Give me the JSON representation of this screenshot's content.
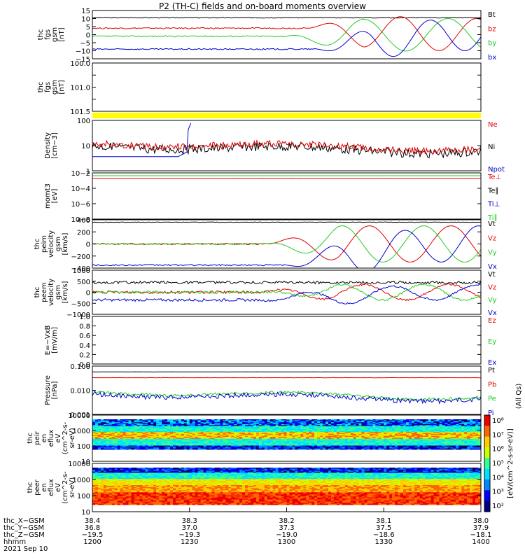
{
  "title": "P2 (TH-C) fields and on-board moments overview",
  "colors": {
    "black": "#000000",
    "red": "#dd0000",
    "green": "#22cc22",
    "blue": "#0000cc",
    "yellow": "#ffff00"
  },
  "chart_data": [
    {
      "id": "fgs",
      "type": "line",
      "ylabel": [
        "thc",
        "fgs",
        "gsm",
        "[nT]"
      ],
      "yticks": [
        "15",
        "10",
        "5",
        "0",
        "−5",
        "−10",
        "−15"
      ],
      "ylim": [
        -15,
        15
      ],
      "legend": [
        {
          "name": "Bt",
          "color": "#000000"
        },
        {
          "name": "bz",
          "color": "#dd0000"
        },
        {
          "name": "by",
          "color": "#22cc22"
        },
        {
          "name": "bx",
          "color": "#0000cc"
        }
      ],
      "series": [
        {
          "name": "Bt",
          "color": "#000000",
          "style": "flat",
          "params": [
            10.5,
            0.4
          ]
        },
        {
          "name": "bz",
          "color": "#dd0000",
          "style": "rot",
          "params": [
            4,
            10,
            0.55,
            3.0,
            0.0
          ]
        },
        {
          "name": "by",
          "color": "#22cc22",
          "style": "rot",
          "params": [
            -1,
            10,
            0.5,
            3.0,
            2.1
          ]
        },
        {
          "name": "bx",
          "color": "#0000cc",
          "style": "rot",
          "params": [
            -9,
            10,
            0.58,
            3.0,
            4.2
          ]
        }
      ]
    },
    {
      "id": "fgs_t",
      "type": "line",
      "ylabel": [
        "thc",
        "fgs",
        "gsm",
        "[nT]"
      ],
      "yticks": [
        "100.0",
        "",
        "101.0",
        "",
        "101.5"
      ],
      "ylim": [
        100.0,
        101.5
      ]
    },
    {
      "id": "density",
      "type": "line",
      "ylabel": [
        "Density",
        "[cm−3]"
      ],
      "yticks": [
        "100",
        "10",
        "1"
      ],
      "log": true,
      "legend": [
        {
          "name": "Ne",
          "color": "#dd0000"
        },
        {
          "name": "Ni",
          "color": "#000000"
        },
        {
          "name": "Npot",
          "color": "#0000cc"
        }
      ],
      "series": [
        {
          "name": "Ni",
          "color": "#000000",
          "style": "noisy",
          "params": [
            0.55,
            0.18
          ]
        },
        {
          "name": "Ne",
          "color": "#dd0000",
          "style": "noisy",
          "params": [
            0.5,
            0.14
          ]
        },
        {
          "name": "Npot",
          "color": "#0000cc",
          "style": "npot",
          "params": [
            0.4,
            0.0
          ]
        }
      ]
    },
    {
      "id": "moms",
      "type": "line",
      "ylabel": [
        "momt3",
        "[eV]"
      ],
      "yticks": [
        "10−2",
        "10−4",
        "10−6",
        "10−8"
      ],
      "log": true,
      "legend": [
        {
          "name": "Te⊥",
          "color": "#dd0000"
        },
        {
          "name": "Te∥",
          "color": "#000000"
        },
        {
          "name": "Ti⊥",
          "color": "#0000cc"
        },
        {
          "name": "Ti∥",
          "color": "#22cc22"
        }
      ],
      "series": [
        {
          "name": "Te⊥",
          "color": "#dd0000",
          "style": "flat",
          "params": [
            0.12,
            0.01
          ]
        },
        {
          "name": "Ti∥",
          "color": "#22cc22",
          "style": "flat",
          "params": [
            0.06,
            0.0
          ]
        }
      ]
    },
    {
      "id": "peim",
      "type": "line",
      "ylabel": [
        "thc",
        "peim",
        "velocity",
        "gsm",
        "[km/s]"
      ],
      "yticks": [
        "400",
        "200",
        "0",
        "−200",
        "−400"
      ],
      "ylim": [
        -400,
        400
      ],
      "legend": [
        {
          "name": "Vt",
          "color": "#000000"
        },
        {
          "name": "Vz",
          "color": "#dd0000"
        },
        {
          "name": "Vy",
          "color": "#22cc22"
        },
        {
          "name": "Vx",
          "color": "#0000cc"
        }
      ],
      "series": [
        {
          "name": "Vt",
          "color": "#000000",
          "style": "flat",
          "params": [
            360,
            8
          ]
        },
        {
          "name": "Vz",
          "color": "#dd0000",
          "style": "rot",
          "params": [
            0,
            300,
            0.45,
            3.4,
            0.0
          ]
        },
        {
          "name": "Vy",
          "color": "#22cc22",
          "style": "rot",
          "params": [
            0,
            300,
            0.45,
            3.4,
            2.1
          ]
        },
        {
          "name": "Vx",
          "color": "#0000cc",
          "style": "rot",
          "params": [
            -350,
            300,
            0.5,
            3.4,
            4.2
          ]
        }
      ]
    },
    {
      "id": "peem",
      "type": "line",
      "ylabel": [
        "thc",
        "peem",
        "velocity",
        "gsm",
        "[km/s]"
      ],
      "yticks": [
        "1000",
        "500",
        "0",
        "−500",
        "−1000"
      ],
      "ylim": [
        -1000,
        1000
      ],
      "legend": [
        {
          "name": "Vt",
          "color": "#000000"
        },
        {
          "name": "Vz",
          "color": "#dd0000"
        },
        {
          "name": "Vy",
          "color": "#22cc22"
        },
        {
          "name": "Vx",
          "color": "#0000cc"
        }
      ],
      "series": [
        {
          "name": "Vt",
          "color": "#000000",
          "style": "flatn",
          "params": [
            440,
            60
          ]
        },
        {
          "name": "Vz",
          "color": "#dd0000",
          "style": "rotn",
          "params": [
            0,
            350,
            0.42,
            3.4,
            0.0
          ]
        },
        {
          "name": "Vy",
          "color": "#22cc22",
          "style": "rotn",
          "params": [
            0,
            350,
            0.45,
            3.4,
            2.1
          ]
        },
        {
          "name": "Vx",
          "color": "#0000cc",
          "style": "rotn",
          "params": [
            -350,
            350,
            0.42,
            3.4,
            4.2
          ]
        }
      ]
    },
    {
      "id": "efield",
      "type": "line",
      "ylabel": [
        "E=−VxB",
        "[mV/m]"
      ],
      "yticks": [
        "1.0",
        "0.8",
        "0.6",
        "0.4",
        "0.2",
        "0.0"
      ],
      "ylim": [
        0,
        1
      ],
      "legend": [
        {
          "name": "Ez",
          "color": "#dd0000"
        },
        {
          "name": "Ey",
          "color": "#22cc22"
        },
        {
          "name": "Ex",
          "color": "#0000cc"
        }
      ]
    },
    {
      "id": "pressure",
      "type": "line",
      "ylabel": [
        "Pressure",
        "[nPa]"
      ],
      "yticks": [
        "0.100",
        "0.010",
        "0.001"
      ],
      "log": true,
      "legend": [
        {
          "name": "Pt",
          "color": "#000000"
        },
        {
          "name": "Pb",
          "color": "#dd0000"
        },
        {
          "name": "Pe",
          "color": "#22cc22"
        },
        {
          "name": "Pi",
          "color": "#0000cc"
        }
      ],
      "series": [
        {
          "name": "Pt",
          "color": "#000000",
          "style": "flat",
          "params": [
            0.12,
            0.02
          ]
        },
        {
          "name": "Pb",
          "color": "#dd0000",
          "style": "flat",
          "params": [
            0.24,
            0.03
          ]
        },
        {
          "name": "Pe",
          "color": "#22cc22",
          "style": "noisy",
          "params": [
            0.58,
            0.06
          ]
        },
        {
          "name": "Pi",
          "color": "#0000cc",
          "style": "noisy",
          "params": [
            0.62,
            0.1
          ]
        }
      ]
    },
    {
      "id": "peir",
      "type": "heatmap",
      "ylabel": [
        "thc",
        "peir",
        "en",
        "eflux",
        "eV",
        "(cm^2-s-",
        "sr-eV)"
      ],
      "yticks": [
        "10000",
        "1000",
        "100",
        "10"
      ],
      "log": true
    },
    {
      "id": "peer",
      "type": "heatmap",
      "ylabel": [
        "thc",
        "peer",
        "en",
        "eflux",
        "eV",
        "(cm^2-s-",
        "sr-eV)"
      ],
      "yticks": [
        "10000",
        "1000",
        "100",
        "10"
      ],
      "log": true
    }
  ],
  "colorbar": {
    "ticks": [
      "10⁸",
      "10⁷",
      "10⁶",
      "10⁵",
      "10⁴",
      "10³",
      "10²"
    ],
    "label": "[eV/(cm^2-s-sr-eV)]",
    "extra_label": "(All Qs)"
  },
  "xaxis": {
    "rows": [
      {
        "label": "thc_X−GSM",
        "values": [
          "38.4",
          "38.3",
          "38.2",
          "38.1",
          "38.0"
        ]
      },
      {
        "label": "thc_Y−GSM",
        "values": [
          "36.8",
          "37.0",
          "37.3",
          "37.5",
          "37.9"
        ]
      },
      {
        "label": "thc_Z−GSM",
        "values": [
          "−19.5",
          "−19.3",
          "−19.0",
          "−18.6",
          "−18.1"
        ]
      },
      {
        "label": "hhmm",
        "values": [
          "1200",
          "1230",
          "1300",
          "1330",
          "1400"
        ]
      }
    ],
    "date": "2021 Sep 10"
  }
}
